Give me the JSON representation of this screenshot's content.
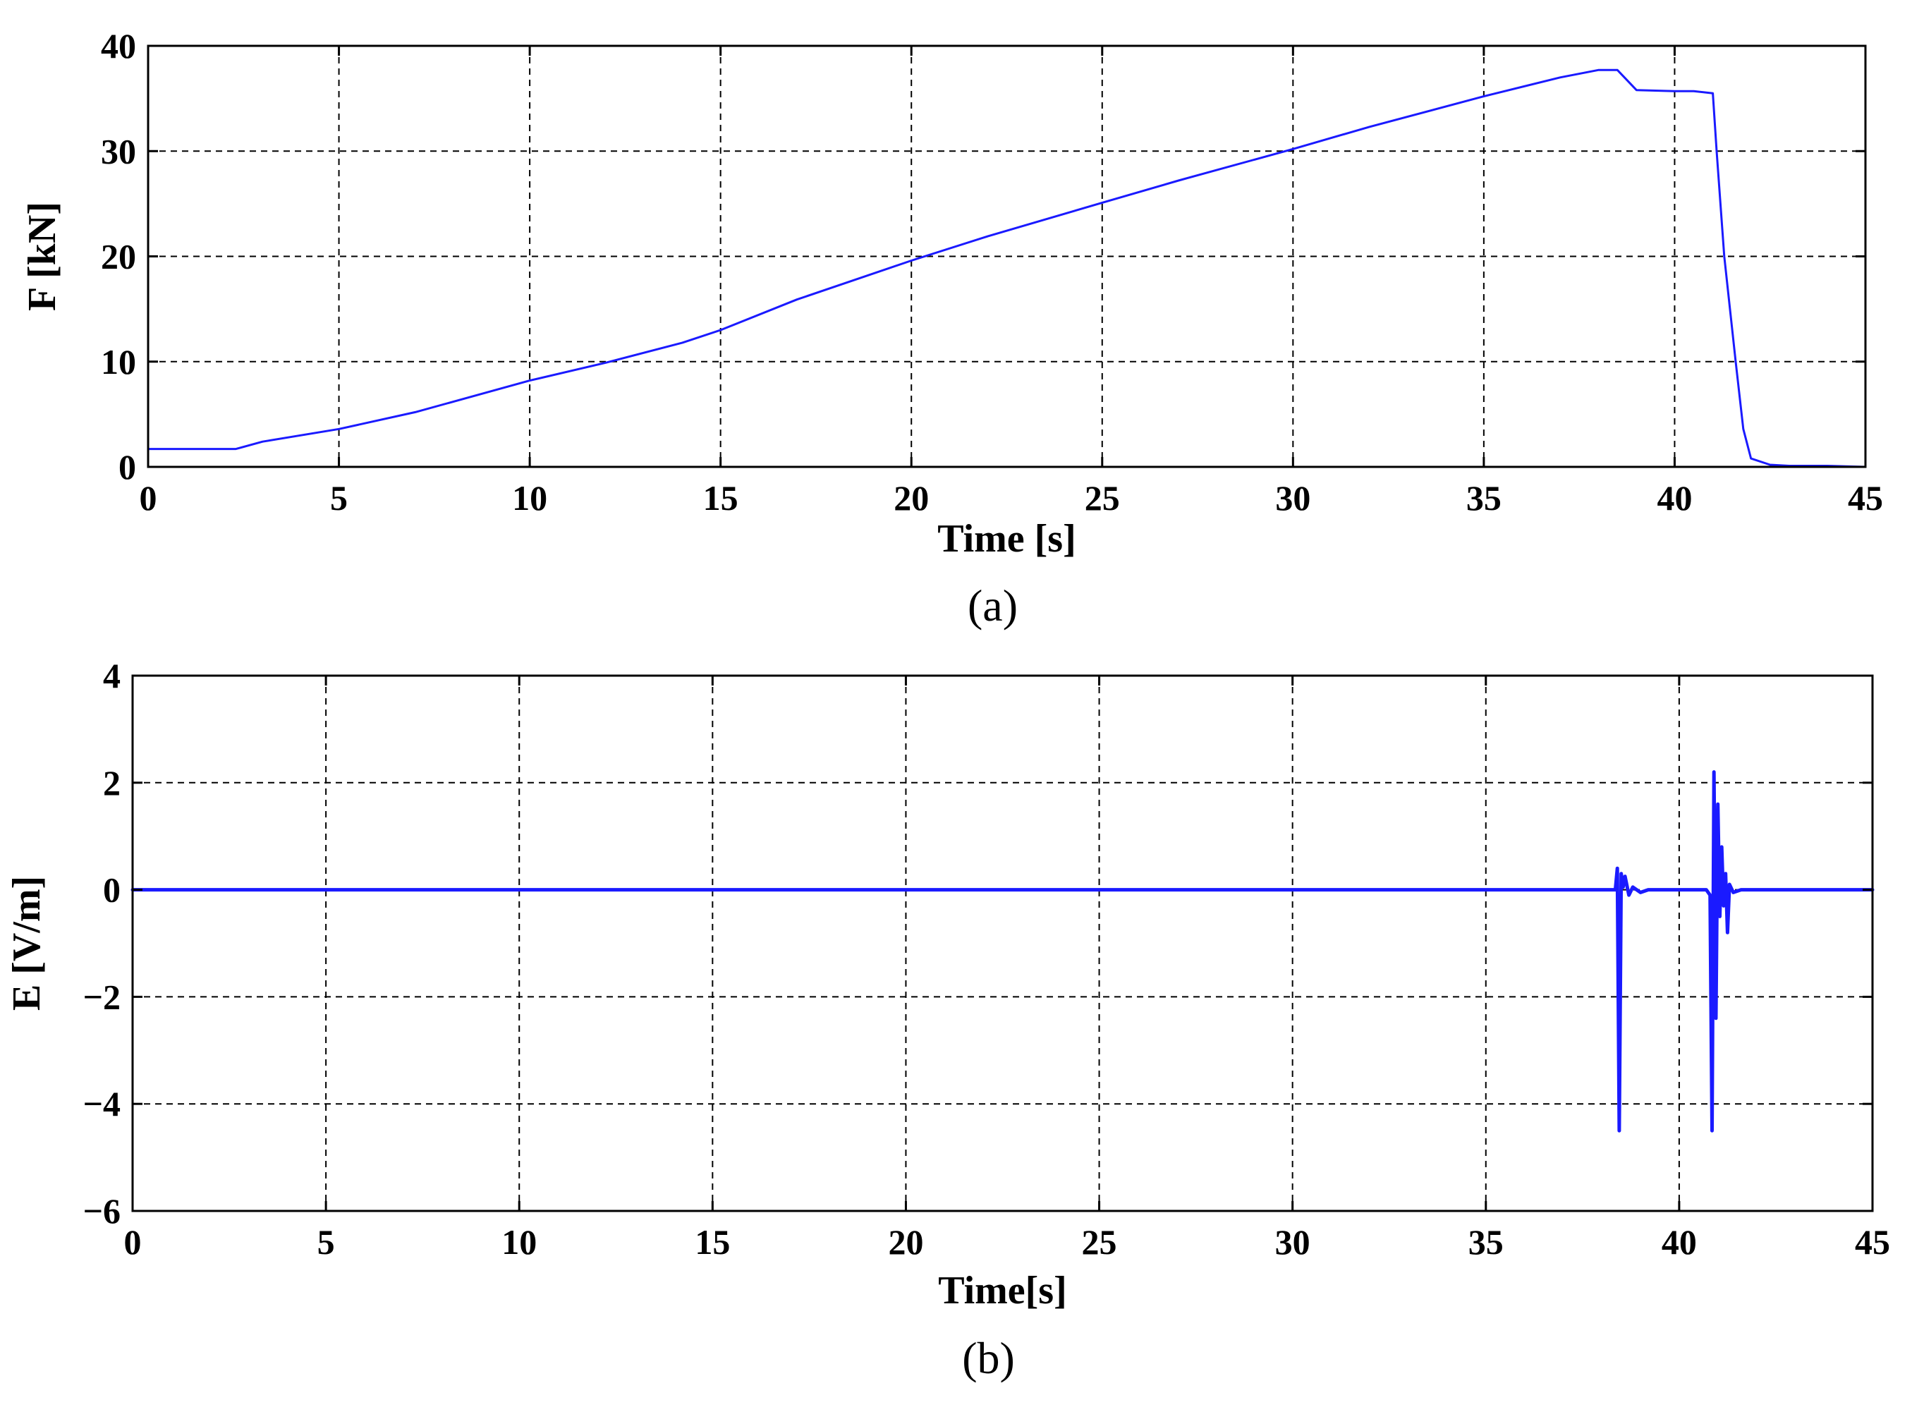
{
  "chart_data": [
    {
      "type": "line",
      "xlabel": "Time [s]",
      "ylabel": "F [kN]",
      "caption": "(a)",
      "xlim": [
        0,
        45
      ],
      "ylim": [
        0,
        40
      ],
      "xticks": [
        0,
        5,
        10,
        15,
        20,
        25,
        30,
        35,
        40,
        45
      ],
      "yticks": [
        0,
        10,
        20,
        30,
        40
      ],
      "ytick_labels": [
        "0",
        "10",
        "20",
        "30",
        "40"
      ],
      "grid": true,
      "color": "#1a1aff",
      "series": [
        {
          "x": [
            0,
            1,
            2.3,
            3,
            5,
            7,
            10,
            12,
            14,
            15,
            17,
            20,
            22,
            25,
            27,
            30,
            32,
            35,
            37,
            38,
            38.5,
            39,
            40,
            40.5,
            41,
            41.1,
            41.3,
            41.6,
            41.8,
            42,
            42.5,
            43,
            44,
            45
          ],
          "y": [
            1.7,
            1.7,
            1.7,
            2.4,
            3.6,
            5.2,
            8.2,
            9.9,
            11.8,
            13.0,
            15.9,
            19.6,
            21.9,
            25.1,
            27.2,
            30.2,
            32.3,
            35.2,
            37.0,
            37.7,
            37.7,
            35.8,
            35.7,
            35.7,
            35.5,
            30.0,
            20.0,
            10.0,
            3.6,
            0.8,
            0.2,
            0.1,
            0.1,
            0.0
          ]
        }
      ]
    },
    {
      "type": "line",
      "xlabel": "Time[s]",
      "ylabel": "E [V/m]",
      "caption": "(b)",
      "xlim": [
        0,
        45
      ],
      "ylim": [
        -6,
        4
      ],
      "xticks": [
        0,
        5,
        10,
        15,
        20,
        25,
        30,
        35,
        40,
        45
      ],
      "yticks": [
        -6,
        -4,
        -2,
        0,
        2,
        4
      ],
      "ytick_labels": [
        "−6",
        "−4",
        "−2",
        "0",
        "2",
        "4"
      ],
      "grid": true,
      "color": "#1a1aff",
      "series": [
        {
          "x": [
            0,
            38.35,
            38.4,
            38.45,
            38.5,
            38.55,
            38.6,
            38.7,
            38.8,
            39.0,
            39.2,
            40.7,
            40.8,
            40.85,
            40.9,
            40.95,
            41.0,
            41.05,
            41.1,
            41.15,
            41.2,
            41.25,
            41.3,
            41.4,
            41.6,
            45
          ],
          "y": [
            0,
            0,
            0.4,
            -4.5,
            0.3,
            0.05,
            0.25,
            -0.1,
            0.05,
            -0.05,
            0,
            0,
            -0.1,
            -4.5,
            2.2,
            -2.4,
            1.6,
            -0.5,
            0.8,
            -0.3,
            0.3,
            -0.8,
            0.1,
            -0.05,
            0,
            0
          ]
        }
      ]
    }
  ]
}
